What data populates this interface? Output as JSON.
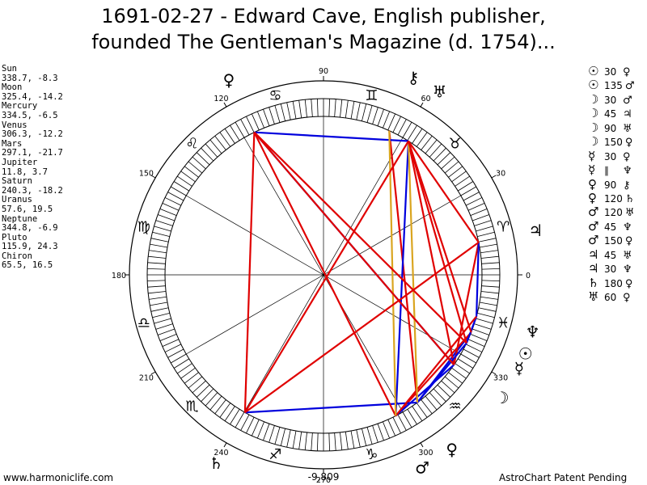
{
  "title": {
    "line1": "1691-02-27 - Edward Cave, English publisher,",
    "line2": "founded The Gentleman's Magazine (d. 1754)..."
  },
  "planets": [
    {
      "name": "Sun",
      "values": "338.7, -8.3"
    },
    {
      "name": "Moon",
      "values": "325.4, -14.2"
    },
    {
      "name": "Mercury",
      "values": "334.5, -6.5"
    },
    {
      "name": "Venus",
      "values": "306.3, -12.2"
    },
    {
      "name": "Mars",
      "values": "297.1, -21.7"
    },
    {
      "name": "Jupiter",
      "values": "11.8, 3.7"
    },
    {
      "name": "Saturn",
      "values": "240.3, -18.2"
    },
    {
      "name": "Uranus",
      "values": "57.6, 19.5"
    },
    {
      "name": "Neptune",
      "values": "344.8, -6.9"
    },
    {
      "name": "Pluto",
      "values": "115.9, 24.3"
    },
    {
      "name": "Chiron",
      "values": "65.5, 16.5"
    }
  ],
  "aspects": [
    {
      "p1": "sun-icon",
      "p1_glyph": "☉",
      "angle": "30",
      "p2": "venus-icon",
      "p2_glyph": "♀"
    },
    {
      "p1": "sun-icon",
      "p1_glyph": "☉",
      "angle": "135",
      "p2": "mars-icon",
      "p2_glyph": "♂"
    },
    {
      "p1": "moon-icon",
      "p1_glyph": "☽",
      "angle": "30",
      "p2": "mars-icon",
      "p2_glyph": "♂"
    },
    {
      "p1": "moon-icon",
      "p1_glyph": "☽",
      "angle": "45",
      "p2": "jupiter-icon",
      "p2_glyph": "♃"
    },
    {
      "p1": "moon-icon",
      "p1_glyph": "☽",
      "angle": "90",
      "p2": "uranus-icon",
      "p2_glyph": "♅"
    },
    {
      "p1": "moon-icon",
      "p1_glyph": "☽",
      "angle": "150",
      "p2": "pluto-icon",
      "p2_glyph": "♀"
    },
    {
      "p1": "mercury-icon",
      "p1_glyph": "☿",
      "angle": "30",
      "p2": "venus-icon",
      "p2_glyph": "♀"
    },
    {
      "p1": "mercury-icon",
      "p1_glyph": "☿",
      "angle": "∥",
      "p2": "neptune-icon",
      "p2_glyph": "♆"
    },
    {
      "p1": "venus-icon",
      "p1_glyph": "♀",
      "angle": "90",
      "p2": "chiron-icon",
      "p2_glyph": "⚷"
    },
    {
      "p1": "venus-icon",
      "p1_glyph": "♀",
      "angle": "120",
      "p2": "saturn-icon",
      "p2_glyph": "♄"
    },
    {
      "p1": "mars-icon",
      "p1_glyph": "♂",
      "angle": "120",
      "p2": "uranus-icon",
      "p2_glyph": "♅"
    },
    {
      "p1": "mars-icon",
      "p1_glyph": "♂",
      "angle": "45",
      "p2": "neptune-icon",
      "p2_glyph": "♆"
    },
    {
      "p1": "mars-icon",
      "p1_glyph": "♂",
      "angle": "150",
      "p2": "pluto-icon",
      "p2_glyph": "♀"
    },
    {
      "p1": "jupiter-icon",
      "p1_glyph": "♃",
      "angle": "45",
      "p2": "uranus-icon",
      "p2_glyph": "♅"
    },
    {
      "p1": "jupiter-icon",
      "p1_glyph": "♃",
      "angle": "30",
      "p2": "neptune-icon",
      "p2_glyph": "♆"
    },
    {
      "p1": "saturn-icon",
      "p1_glyph": "♄",
      "angle": "180",
      "p2": "pluto-icon",
      "p2_glyph": "♀"
    },
    {
      "p1": "uranus-icon",
      "p1_glyph": "♅",
      "angle": "60",
      "p2": "pluto-icon",
      "p2_glyph": "♀"
    }
  ],
  "wheel": {
    "ascendant": 0,
    "degree_labels": [
      "0",
      "30",
      "60",
      "90",
      "120",
      "150",
      "180",
      "210",
      "240",
      "270",
      "300",
      "330"
    ],
    "bottom_value": "-9,809",
    "signs": [
      {
        "name": "aries",
        "glyph": "♈"
      },
      {
        "name": "taurus",
        "glyph": "♉"
      },
      {
        "name": "gemini",
        "glyph": "♊"
      },
      {
        "name": "cancer",
        "glyph": "♋"
      },
      {
        "name": "leo",
        "glyph": "♌"
      },
      {
        "name": "virgo",
        "glyph": "♍"
      },
      {
        "name": "libra",
        "glyph": "♎"
      },
      {
        "name": "scorpio",
        "glyph": "♏"
      },
      {
        "name": "sagittarius",
        "glyph": "♐"
      },
      {
        "name": "capricorn",
        "glyph": "♑"
      },
      {
        "name": "aquarius",
        "glyph": "♒"
      },
      {
        "name": "pisces",
        "glyph": "♓"
      }
    ],
    "bodies": [
      {
        "id": "sun",
        "glyph": "☉",
        "lon": 338.7
      },
      {
        "id": "moon",
        "glyph": "☽",
        "lon": 325.4
      },
      {
        "id": "mercury",
        "glyph": "☿",
        "lon": 334.5
      },
      {
        "id": "venus",
        "glyph": "♀",
        "lon": 306.3
      },
      {
        "id": "mars",
        "glyph": "♂",
        "lon": 297.1
      },
      {
        "id": "jupiter",
        "glyph": "♃",
        "lon": 11.8
      },
      {
        "id": "saturn",
        "glyph": "♄",
        "lon": 240.3
      },
      {
        "id": "uranus",
        "glyph": "♅",
        "lon": 57.6
      },
      {
        "id": "neptune",
        "glyph": "♆",
        "lon": 344.8
      },
      {
        "id": "pluto",
        "glyph": "♀",
        "lon": 115.9
      },
      {
        "id": "chiron",
        "glyph": "⚷",
        "lon": 65.5
      }
    ],
    "aspect_lines": [
      {
        "a": "sun",
        "b": "venus",
        "color": "#0000dd"
      },
      {
        "a": "sun",
        "b": "mars",
        "color": "#e00000"
      },
      {
        "a": "moon",
        "b": "mars",
        "color": "#0000dd"
      },
      {
        "a": "moon",
        "b": "jupiter",
        "color": "#e00000"
      },
      {
        "a": "moon",
        "b": "uranus",
        "color": "#e00000"
      },
      {
        "a": "moon",
        "b": "pluto",
        "color": "#0000dd"
      },
      {
        "a": "mercury",
        "b": "venus",
        "color": "#0000dd"
      },
      {
        "a": "mercury",
        "b": "neptune",
        "color": "#0000dd"
      },
      {
        "a": "venus",
        "b": "chiron",
        "color": "#e00000"
      },
      {
        "a": "venus",
        "b": "saturn",
        "color": "#0000dd"
      },
      {
        "a": "mars",
        "b": "uranus",
        "color": "#0000dd"
      },
      {
        "a": "mars",
        "b": "neptune",
        "color": "#e00000"
      },
      {
        "a": "mars",
        "b": "pluto",
        "color": "#e00000"
      },
      {
        "a": "jupiter",
        "b": "uranus",
        "color": "#e00000"
      },
      {
        "a": "jupiter",
        "b": "neptune",
        "color": "#0000dd"
      },
      {
        "a": "saturn",
        "b": "pluto",
        "color": "#e00000"
      },
      {
        "a": "uranus",
        "b": "pluto",
        "color": "#0000dd"
      },
      {
        "a": "mars",
        "b": "chiron",
        "color": "#daa520"
      },
      {
        "a": "venus",
        "b": "uranus",
        "color": "#daa520"
      },
      {
        "a": "saturn",
        "b": "jupiter",
        "color": "#e00000"
      },
      {
        "a": "pluto",
        "b": "mercury",
        "color": "#e00000"
      },
      {
        "a": "pluto",
        "b": "moon",
        "color": "#e00000"
      },
      {
        "a": "uranus",
        "b": "sun",
        "color": "#e00000"
      },
      {
        "a": "uranus",
        "b": "mercury",
        "color": "#e00000"
      },
      {
        "a": "saturn",
        "b": "uranus",
        "color": "#e00000"
      }
    ]
  },
  "footer": {
    "left": "www.harmoniclife.com",
    "right": "AstroChart Patent Pending"
  }
}
